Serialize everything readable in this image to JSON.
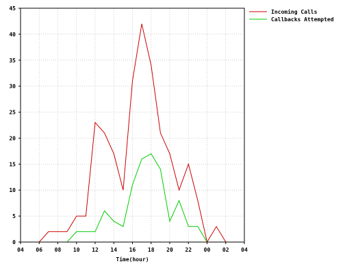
{
  "chart_data": {
    "type": "line",
    "xlabel": "Time(hour)",
    "ylabel": "",
    "x_ticks": [
      "04",
      "06",
      "08",
      "10",
      "12",
      "14",
      "16",
      "18",
      "20",
      "22",
      "00",
      "02",
      "04"
    ],
    "y_ticks": [
      0,
      5,
      10,
      15,
      20,
      25,
      30,
      35,
      40,
      45
    ],
    "ylim": [
      0,
      45
    ],
    "grid": true,
    "legend_position": "top-right",
    "x": [
      "05",
      "06",
      "07",
      "08",
      "09",
      "10",
      "11",
      "12",
      "13",
      "14",
      "15",
      "16",
      "17",
      "18",
      "19",
      "20",
      "21",
      "22",
      "23",
      "00",
      "01",
      "02",
      "03"
    ],
    "series": [
      {
        "name": "Incoming Calls",
        "color": "#cc0000",
        "values": [
          0,
          0,
          2,
          2,
          2,
          5,
          5,
          23,
          21,
          17,
          10,
          31,
          42,
          34,
          21,
          17,
          10,
          15,
          8,
          0,
          3,
          0,
          0
        ]
      },
      {
        "name": "Callbacks Attempted",
        "color": "#00cc00",
        "values": [
          0,
          0,
          0,
          0,
          0,
          2,
          2,
          2,
          6,
          4,
          3,
          11,
          16,
          17,
          14,
          4,
          8,
          3,
          3,
          0,
          0,
          0,
          0
        ]
      }
    ]
  }
}
